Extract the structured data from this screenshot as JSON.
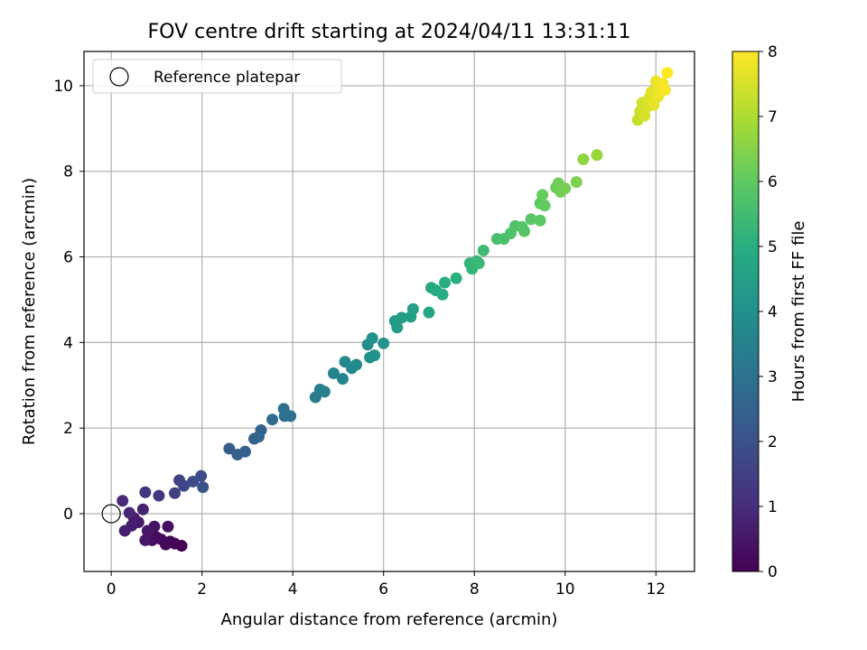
{
  "chart_data": {
    "type": "scatter",
    "title": "FOV centre drift starting at 2024/04/11 13:31:11",
    "xlabel": "Angular distance from reference (arcmin)",
    "ylabel": "Rotation from reference (arcmin)",
    "xlim": [
      -0.6,
      12.85
    ],
    "ylim": [
      -1.35,
      10.8
    ],
    "xticks": [
      0,
      2,
      4,
      6,
      8,
      10,
      12
    ],
    "yticks": [
      0,
      2,
      4,
      6,
      8,
      10
    ],
    "grid": true,
    "legend": {
      "position": "top-left",
      "entries": [
        "Reference platepar"
      ]
    },
    "reference_point": {
      "label": "Reference platepar",
      "x": 0,
      "y": 0
    },
    "colorbar": {
      "label": "Hours from first FF file",
      "range": [
        0,
        8
      ],
      "ticks": [
        0,
        1,
        2,
        3,
        4,
        5,
        6,
        7,
        8
      ],
      "colormap": "viridis"
    },
    "points": [
      {
        "x": 1.55,
        "y": -0.75,
        "c": 0.0
      },
      {
        "x": 1.4,
        "y": -0.7,
        "c": 0.05
      },
      {
        "x": 1.3,
        "y": -0.65,
        "c": 0.1
      },
      {
        "x": 1.2,
        "y": -0.72,
        "c": 0.15
      },
      {
        "x": 1.1,
        "y": -0.6,
        "c": 0.2
      },
      {
        "x": 1.0,
        "y": -0.55,
        "c": 0.25
      },
      {
        "x": 0.9,
        "y": -0.62,
        "c": 0.3
      },
      {
        "x": 1.25,
        "y": -0.3,
        "c": 0.35
      },
      {
        "x": 0.95,
        "y": -0.3,
        "c": 0.4
      },
      {
        "x": 0.8,
        "y": -0.4,
        "c": 0.45
      },
      {
        "x": 0.75,
        "y": -0.62,
        "c": 0.5
      },
      {
        "x": 0.6,
        "y": -0.2,
        "c": 0.55
      },
      {
        "x": 0.5,
        "y": -0.1,
        "c": 0.6
      },
      {
        "x": 0.45,
        "y": -0.28,
        "c": 0.65
      },
      {
        "x": 0.3,
        "y": -0.4,
        "c": 0.7
      },
      {
        "x": 0.7,
        "y": 0.1,
        "c": 0.75
      },
      {
        "x": 0.4,
        "y": 0.02,
        "c": 0.85
      },
      {
        "x": 0.25,
        "y": 0.3,
        "c": 0.95
      },
      {
        "x": 0.75,
        "y": 0.5,
        "c": 1.2
      },
      {
        "x": 1.05,
        "y": 0.42,
        "c": 1.3
      },
      {
        "x": 1.4,
        "y": 0.48,
        "c": 1.5
      },
      {
        "x": 1.5,
        "y": 0.78,
        "c": 1.6
      },
      {
        "x": 1.6,
        "y": 0.65,
        "c": 1.7
      },
      {
        "x": 1.8,
        "y": 0.75,
        "c": 1.8
      },
      {
        "x": 1.98,
        "y": 0.88,
        "c": 1.9
      },
      {
        "x": 2.02,
        "y": 0.62,
        "c": 2.0
      },
      {
        "x": 2.6,
        "y": 1.52,
        "c": 2.3
      },
      {
        "x": 2.78,
        "y": 1.38,
        "c": 2.4
      },
      {
        "x": 2.95,
        "y": 1.45,
        "c": 2.45
      },
      {
        "x": 3.15,
        "y": 1.75,
        "c": 2.5
      },
      {
        "x": 3.3,
        "y": 1.95,
        "c": 2.6
      },
      {
        "x": 3.25,
        "y": 1.8,
        "c": 2.65
      },
      {
        "x": 3.55,
        "y": 2.2,
        "c": 2.8
      },
      {
        "x": 3.8,
        "y": 2.45,
        "c": 2.9
      },
      {
        "x": 3.82,
        "y": 2.28,
        "c": 2.95
      },
      {
        "x": 3.95,
        "y": 2.28,
        "c": 3.0
      },
      {
        "x": 4.5,
        "y": 2.72,
        "c": 3.3
      },
      {
        "x": 4.6,
        "y": 2.9,
        "c": 3.4
      },
      {
        "x": 4.7,
        "y": 2.85,
        "c": 3.45
      },
      {
        "x": 4.9,
        "y": 3.28,
        "c": 3.55
      },
      {
        "x": 5.1,
        "y": 3.15,
        "c": 3.6
      },
      {
        "x": 5.15,
        "y": 3.55,
        "c": 3.7
      },
      {
        "x": 5.3,
        "y": 3.4,
        "c": 3.75
      },
      {
        "x": 5.4,
        "y": 3.48,
        "c": 3.8
      },
      {
        "x": 5.65,
        "y": 3.95,
        "c": 3.9
      },
      {
        "x": 5.7,
        "y": 3.65,
        "c": 3.95
      },
      {
        "x": 5.75,
        "y": 4.1,
        "c": 4.0
      },
      {
        "x": 5.8,
        "y": 3.7,
        "c": 4.05
      },
      {
        "x": 6.0,
        "y": 3.98,
        "c": 4.1
      },
      {
        "x": 6.25,
        "y": 4.5,
        "c": 4.3
      },
      {
        "x": 6.3,
        "y": 4.35,
        "c": 4.35
      },
      {
        "x": 6.4,
        "y": 4.58,
        "c": 4.4
      },
      {
        "x": 6.6,
        "y": 4.6,
        "c": 4.45
      },
      {
        "x": 6.65,
        "y": 4.78,
        "c": 4.5
      },
      {
        "x": 7.0,
        "y": 4.7,
        "c": 4.7
      },
      {
        "x": 7.05,
        "y": 5.28,
        "c": 4.8
      },
      {
        "x": 7.15,
        "y": 5.22,
        "c": 4.85
      },
      {
        "x": 7.3,
        "y": 5.12,
        "c": 4.9
      },
      {
        "x": 7.35,
        "y": 5.4,
        "c": 4.95
      },
      {
        "x": 7.6,
        "y": 5.5,
        "c": 5.05
      },
      {
        "x": 7.9,
        "y": 5.85,
        "c": 5.2
      },
      {
        "x": 7.95,
        "y": 5.72,
        "c": 5.25
      },
      {
        "x": 8.05,
        "y": 5.9,
        "c": 5.3
      },
      {
        "x": 8.1,
        "y": 5.85,
        "c": 5.35
      },
      {
        "x": 8.2,
        "y": 6.15,
        "c": 5.45
      },
      {
        "x": 8.5,
        "y": 6.42,
        "c": 5.6
      },
      {
        "x": 8.65,
        "y": 6.42,
        "c": 5.65
      },
      {
        "x": 8.8,
        "y": 6.55,
        "c": 5.7
      },
      {
        "x": 8.9,
        "y": 6.72,
        "c": 5.75
      },
      {
        "x": 9.05,
        "y": 6.7,
        "c": 5.8
      },
      {
        "x": 9.1,
        "y": 6.6,
        "c": 5.85
      },
      {
        "x": 9.25,
        "y": 6.88,
        "c": 5.9
      },
      {
        "x": 9.45,
        "y": 6.85,
        "c": 5.95
      },
      {
        "x": 9.45,
        "y": 7.25,
        "c": 6.0
      },
      {
        "x": 9.55,
        "y": 7.2,
        "c": 6.05
      },
      {
        "x": 9.5,
        "y": 7.45,
        "c": 6.1
      },
      {
        "x": 9.8,
        "y": 7.62,
        "c": 6.15
      },
      {
        "x": 9.85,
        "y": 7.72,
        "c": 6.2
      },
      {
        "x": 9.9,
        "y": 7.52,
        "c": 6.25
      },
      {
        "x": 10.0,
        "y": 7.6,
        "c": 6.3
      },
      {
        "x": 10.25,
        "y": 7.75,
        "c": 6.4
      },
      {
        "x": 10.4,
        "y": 8.28,
        "c": 6.6
      },
      {
        "x": 10.7,
        "y": 8.38,
        "c": 6.75
      },
      {
        "x": 11.6,
        "y": 9.2,
        "c": 7.3
      },
      {
        "x": 11.65,
        "y": 9.4,
        "c": 7.4
      },
      {
        "x": 11.7,
        "y": 9.6,
        "c": 7.45
      },
      {
        "x": 11.75,
        "y": 9.3,
        "c": 7.5
      },
      {
        "x": 11.8,
        "y": 9.5,
        "c": 7.55
      },
      {
        "x": 11.85,
        "y": 9.7,
        "c": 7.6
      },
      {
        "x": 11.9,
        "y": 9.85,
        "c": 7.65
      },
      {
        "x": 11.95,
        "y": 9.55,
        "c": 7.7
      },
      {
        "x": 12.0,
        "y": 10.1,
        "c": 7.75
      },
      {
        "x": 12.05,
        "y": 9.75,
        "c": 7.8
      },
      {
        "x": 12.1,
        "y": 9.95,
        "c": 7.85
      },
      {
        "x": 12.15,
        "y": 10.05,
        "c": 7.9
      },
      {
        "x": 12.2,
        "y": 9.9,
        "c": 7.95
      },
      {
        "x": 12.25,
        "y": 10.3,
        "c": 8.0
      }
    ]
  }
}
